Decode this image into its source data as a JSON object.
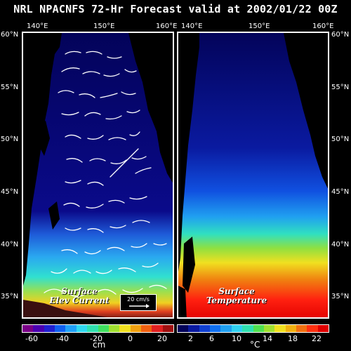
{
  "title": "NRL NPACNFS 72-Hr Forecast valid at 2002/01/22 00Z",
  "left_panel": {
    "lon_ticks": [
      "140°E",
      "150°E",
      "160°E"
    ],
    "lat_ticks": [
      "60°N",
      "55°N",
      "50°N",
      "45°N",
      "40°N",
      "35°N"
    ],
    "label_line1": "Surface",
    "label_line2": "Elev Current",
    "reference_vector": "20 cm/s",
    "colorbar_labels": [
      "-60",
      "-40",
      "-20",
      "0",
      "20"
    ],
    "units": "cm"
  },
  "right_panel": {
    "lon_ticks": [
      "140°E",
      "150°E",
      "160°E"
    ],
    "lat_ticks": [
      "60°N",
      "55°N",
      "50°N",
      "45°N",
      "40°N",
      "35°N"
    ],
    "label_line1": "Surface",
    "label_line2": "Temperature",
    "colorbar_labels": [
      "2",
      "6",
      "10",
      "14",
      "18",
      "22"
    ],
    "units": "°C"
  },
  "colors": {
    "land": "#000000",
    "ocean_cold": "#03035a",
    "arrows": "#ffffff"
  }
}
